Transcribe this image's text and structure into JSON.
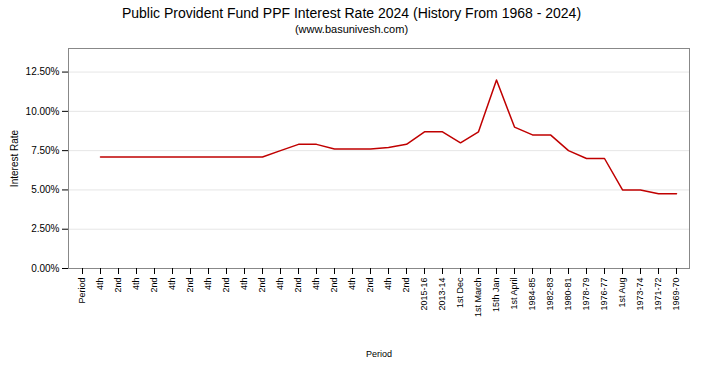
{
  "chart_data": {
    "type": "line",
    "title": "Public Provident Fund PPF Interest Rate 2024 (History From 1968 - 2024)",
    "subtitle": "(www.basunivesh.com)",
    "x_label": "Period",
    "y_label": "Interest Rate",
    "categories": [
      "Period",
      "4th",
      "2nd",
      "4th",
      "2nd",
      "4th",
      "2nd",
      "4th",
      "2nd",
      "4th",
      "2nd",
      "4th",
      "2nd",
      "4th",
      "2nd",
      "4th",
      "2nd",
      "4th",
      "2nd",
      "2015-16",
      "2013-14",
      "1st Dec",
      "1st March",
      "15th Jan",
      "1st April",
      "1984-85",
      "1982-83",
      "1980-81",
      "1978-79",
      "1976-77",
      "1st Aug",
      "1973-74",
      "1971-72",
      "1969-70"
    ],
    "values": [
      null,
      7.1,
      7.1,
      7.1,
      7.1,
      7.1,
      7.1,
      7.1,
      7.1,
      7.1,
      7.1,
      7.5,
      7.9,
      7.9,
      7.6,
      7.6,
      7.6,
      7.7,
      7.9,
      8.7,
      8.7,
      8.0,
      8.7,
      12.0,
      9.0,
      8.5,
      8.5,
      7.5,
      7.0,
      7.0,
      5.0,
      5.0,
      4.75,
      4.75
    ],
    "color": "#c00000",
    "ylim": [
      0,
      14.0
    ],
    "yticks": [
      {
        "value": 0.0,
        "label": "0.00%"
      },
      {
        "value": 2.5,
        "label": "2.50%"
      },
      {
        "value": 5.0,
        "label": "5.00%"
      },
      {
        "value": 7.5,
        "label": "7.50%"
      },
      {
        "value": 10.0,
        "label": "10.00%"
      },
      {
        "value": 12.5,
        "label": "12.50%"
      }
    ],
    "grid": true
  }
}
